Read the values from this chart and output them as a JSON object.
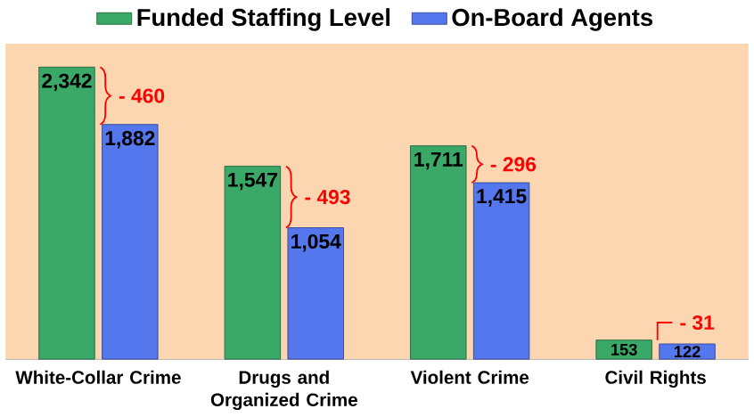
{
  "chart_data": {
    "type": "bar",
    "categories": [
      "White-Collar Crime",
      "Drugs and Organized Crime",
      "Violent Crime",
      "Civil Rights"
    ],
    "series": [
      {
        "name": "Funded Staffing Level",
        "color": "#3aa866",
        "values": [
          2342,
          1547,
          1711,
          153
        ],
        "value_labels": [
          "2,342",
          "1,547",
          "1,711",
          "153"
        ]
      },
      {
        "name": "On-Board Agents",
        "color": "#5577ee",
        "values": [
          1882,
          1054,
          1415,
          122
        ],
        "value_labels": [
          "1,882",
          "1,054",
          "1,415",
          "122"
        ]
      }
    ],
    "annotations": [
      "- 460",
      "- 493",
      "- 296",
      "- 31"
    ],
    "legend": "top"
  }
}
